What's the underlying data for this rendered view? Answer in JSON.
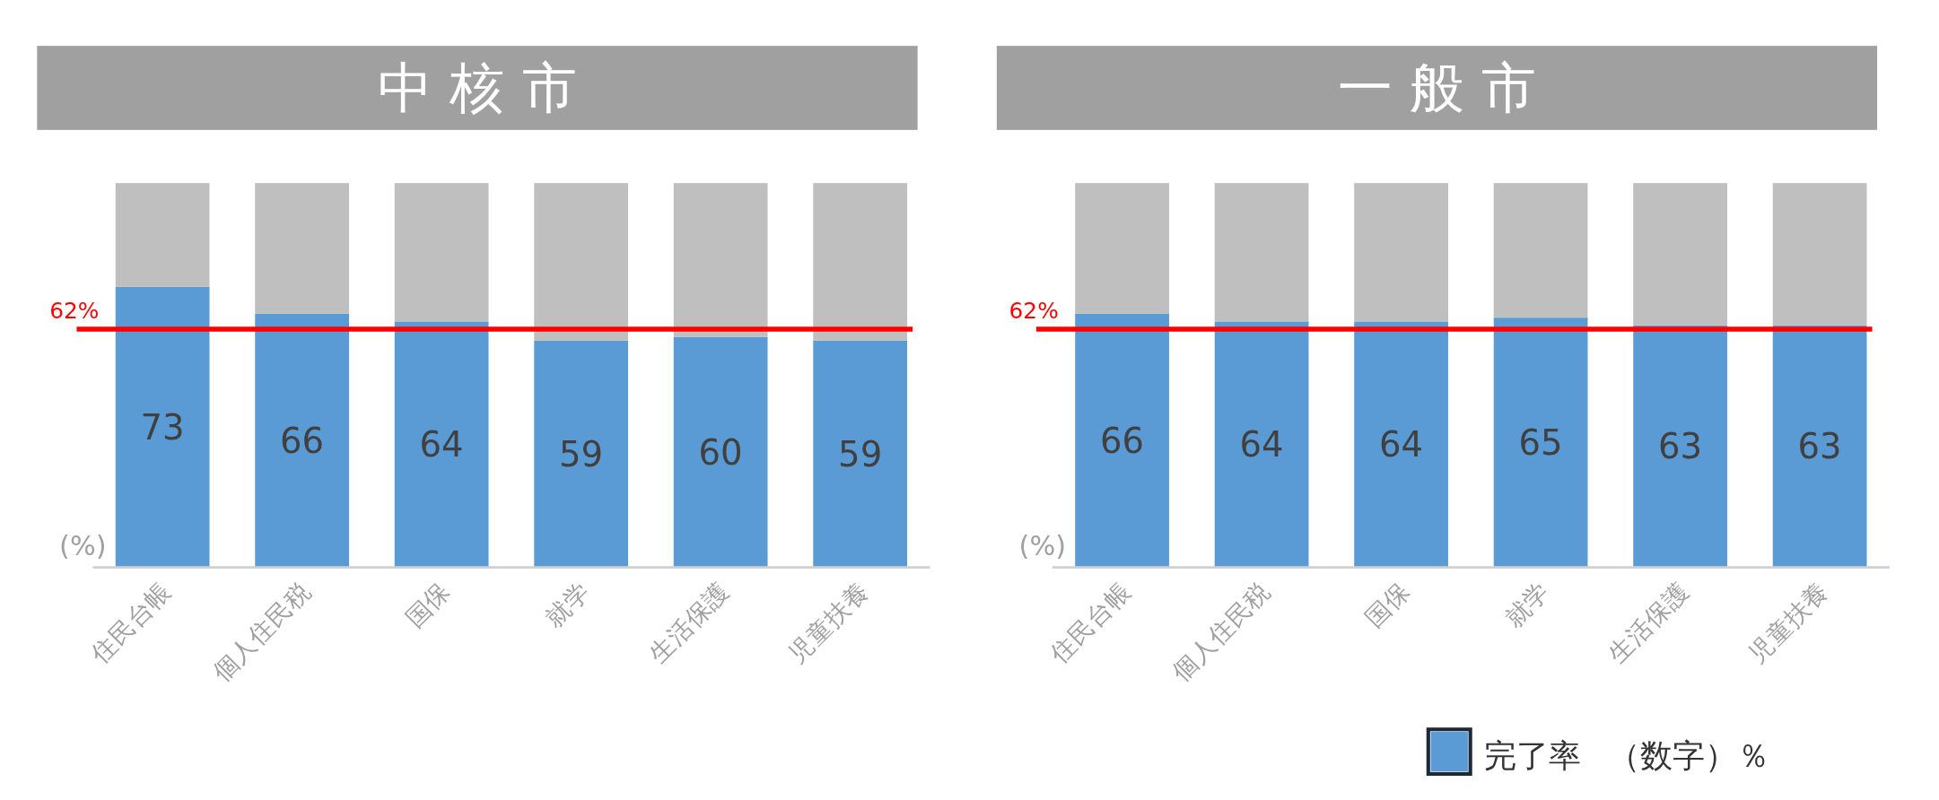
{
  "chart_data": [
    {
      "type": "bar",
      "title": "中 核 市",
      "ylabel": "(%)",
      "categories": [
        "住民台帳",
        "個人住民税",
        "国保",
        "就学",
        "生活保護",
        "児童扶養"
      ],
      "stacked": true,
      "ylim": [
        0,
        100
      ],
      "tick_labels": "x",
      "legend": false,
      "series": [
        {
          "color": "#5b9bd5",
          "values": [
            73,
            66,
            64,
            59,
            60,
            59
          ],
          "value_labels": [
            "73",
            "66",
            "64",
            "59",
            "60",
            "59"
          ]
        },
        {
          "color": "#bfbfbf",
          "values": [
            27,
            34,
            36,
            41,
            40,
            41
          ]
        }
      ],
      "ref_lines": [
        {
          "axis": "y",
          "value": 62,
          "label": "62%",
          "color": "#ff0000"
        }
      ]
    },
    {
      "type": "bar",
      "title": "一 般 市",
      "ylabel": "(%)",
      "categories": [
        "住民台帳",
        "個人住民税",
        "国保",
        "就学",
        "生活保護",
        "児童扶養"
      ],
      "stacked": true,
      "ylim": [
        0,
        100
      ],
      "tick_labels": "x",
      "legend": "bottom",
      "series": [
        {
          "name": "完了率",
          "color": "#5b9bd5",
          "values": [
            66,
            64,
            64,
            65,
            63,
            63
          ],
          "value_labels": [
            "66",
            "64",
            "64",
            "65",
            "63",
            "63"
          ]
        },
        {
          "color": "#bfbfbf",
          "values": [
            34,
            36,
            36,
            35,
            37,
            37
          ]
        }
      ],
      "ref_lines": [
        {
          "axis": "y",
          "value": 62,
          "label": "62%",
          "color": "#ff0000"
        }
      ],
      "annotations": [
        "（数字）％"
      ]
    }
  ]
}
